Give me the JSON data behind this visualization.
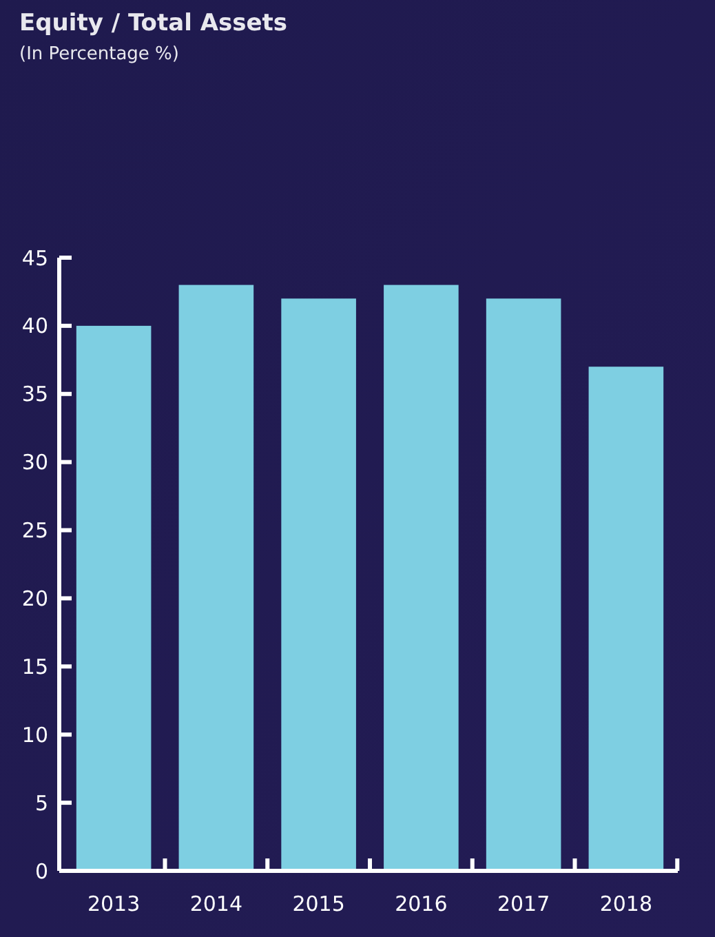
{
  "chart_data": {
    "type": "bar",
    "title": "Equity / Total Assets",
    "subtitle": "(In Percentage %)",
    "categories": [
      "2013",
      "2014",
      "2015",
      "2016",
      "2017",
      "2018"
    ],
    "values": [
      40,
      43,
      42,
      43,
      42,
      37
    ],
    "color": "#7ecfe2",
    "ylim": [
      0,
      45
    ],
    "yticks": [
      0,
      5,
      10,
      15,
      20,
      25,
      30,
      35,
      40,
      45
    ],
    "grid": false
  }
}
